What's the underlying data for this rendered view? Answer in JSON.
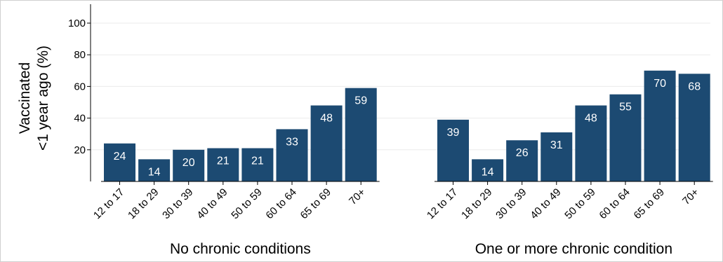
{
  "chart_data": {
    "type": "bar",
    "ylabel_lines": [
      "Vaccinated",
      "<1 year ago (%)"
    ],
    "ylim": [
      0,
      100
    ],
    "yticks": [
      20,
      40,
      60,
      80,
      100
    ],
    "ytick_labels": [
      "20",
      "40",
      "60",
      "80",
      "100"
    ],
    "grid": true,
    "bar_color": "#1c4a72",
    "categories": [
      "12 to 17",
      "18 to 29",
      "30 to 39",
      "40 to 49",
      "50 to 59",
      "60 to 64",
      "65 to 69",
      "70+"
    ],
    "panels": [
      {
        "label": "No chronic conditions",
        "values": [
          24,
          14,
          20,
          21,
          21,
          33,
          48,
          59
        ]
      },
      {
        "label": "One or more chronic condition",
        "values": [
          39,
          14,
          26,
          31,
          48,
          55,
          70,
          68
        ]
      }
    ]
  }
}
